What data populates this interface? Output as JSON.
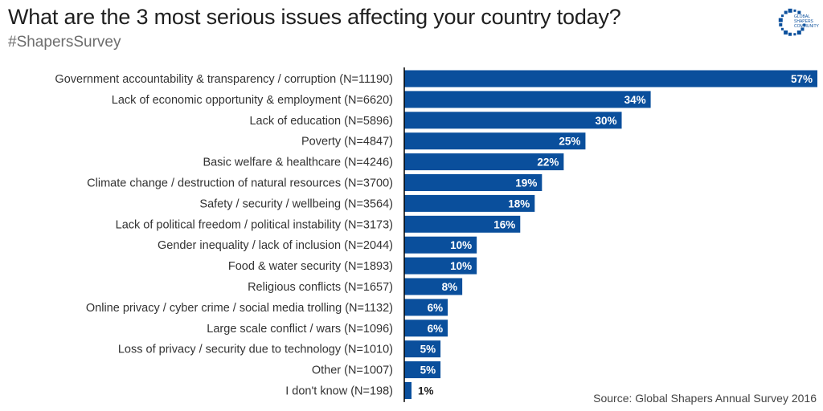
{
  "header": {
    "title": "What are the 3 most serious issues affecting your country today?",
    "subtitle": "#ShapersSurvey"
  },
  "logo": {
    "icon": "global-shapers-community-logo",
    "text": [
      "GLOBAL",
      "SHAPERS",
      "COMMUNITY"
    ],
    "color": "#0a4f9c"
  },
  "footer": {
    "source": "Source: Global Shapers Annual Survey 2016"
  },
  "colors": {
    "bar": "#0a4f9c",
    "axis": "#000000",
    "label_inside": "#ffffff",
    "label_outside": "#222222"
  },
  "chart_data": {
    "type": "bar",
    "orientation": "horizontal",
    "title": "What are the 3 most serious issues affecting your country today?",
    "xlim": [
      0,
      57
    ],
    "categories": [
      "Government accountability & transparency / corruption (N=11190)",
      "Lack of economic opportunity & employment (N=6620)",
      "Lack of education (N=5896)",
      "Poverty (N=4847)",
      "Basic welfare & healthcare (N=4246)",
      "Climate change / destruction of natural resources (N=3700)",
      "Safety / security / wellbeing (N=3564)",
      "Lack of political freedom / political instability (N=3173)",
      "Gender inequality / lack of inclusion (N=2044)",
      "Food & water security (N=1893)",
      "Religious conflicts (N=1657)",
      "Online privacy / cyber crime / social media trolling (N=1132)",
      "Large scale conflict / wars (N=1096)",
      "Loss of privacy / security due to technology (N=1010)",
      "Other (N=1007)",
      "I don't know (N=198)"
    ],
    "values": [
      57,
      34,
      30,
      25,
      22,
      19,
      18,
      16,
      10,
      10,
      8,
      6,
      6,
      5,
      5,
      1
    ],
    "value_labels": [
      "57%",
      "34%",
      "30%",
      "25%",
      "22%",
      "19%",
      "18%",
      "16%",
      "10%",
      "10%",
      "8%",
      "6%",
      "6%",
      "5%",
      "5%",
      "1%"
    ],
    "grid": false,
    "legend": "none"
  }
}
